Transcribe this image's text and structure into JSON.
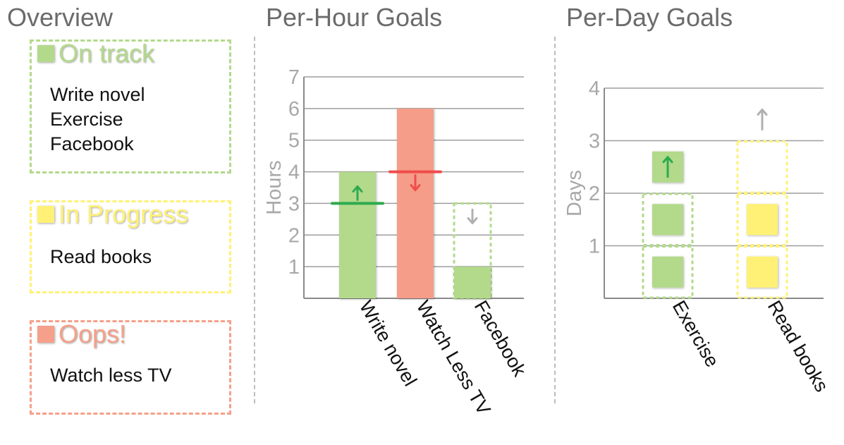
{
  "titles": {
    "overview": "Overview",
    "hourly": "Per-Hour Goals",
    "daily": "Per-Day Goals"
  },
  "overview": {
    "on_track": {
      "title": "On track",
      "color": "#b3d98b",
      "items": [
        "Write novel",
        "Exercise",
        "Facebook"
      ]
    },
    "in_progress": {
      "title": "In Progress",
      "color": "#fff176",
      "items": [
        "Read books"
      ]
    },
    "oops": {
      "title": "Oops!",
      "color": "#f5a08a",
      "items": [
        "Watch less TV"
      ]
    }
  },
  "colors": {
    "green": "#b3d98b",
    "yellow": "#fff176",
    "red": "#f59d88",
    "goal_green": "#2eaa4f",
    "goal_red": "#f04c4c",
    "arrow_gray": "#b0b0b0",
    "grid": "#9e9e9e",
    "tick": "#a8a8a8"
  },
  "chart_data": [
    {
      "type": "bar",
      "title": "Per-Hour Goals",
      "ylabel": "Hours",
      "xlabel": "",
      "ylim": [
        0,
        7
      ],
      "yticks": [
        1,
        2,
        3,
        4,
        5,
        6,
        7
      ],
      "grid": true,
      "categories": [
        "Write novel",
        "Watch Less TV",
        "Facebook"
      ],
      "values": [
        4,
        6,
        1
      ],
      "goals": [
        3,
        4,
        3
      ],
      "goal_direction": [
        "up",
        "down",
        "down"
      ],
      "status": [
        "on_track",
        "oops",
        "on_track"
      ],
      "icons": [
        "up-arrow-icon",
        "down-arrow-icon",
        "down-arrow-icon"
      ]
    },
    {
      "type": "bar",
      "title": "Per-Day Goals",
      "ylabel": "Days",
      "xlabel": "",
      "ylim": [
        0,
        4
      ],
      "yticks": [
        1,
        2,
        3,
        4
      ],
      "grid": true,
      "categories": [
        "Exercise",
        "Read books"
      ],
      "values": [
        3,
        2
      ],
      "goals": [
        2,
        3
      ],
      "goal_direction": [
        "up",
        "up"
      ],
      "status": [
        "on_track",
        "in_progress"
      ],
      "icons": [
        "up-arrow-icon",
        "up-arrow-icon"
      ]
    }
  ]
}
